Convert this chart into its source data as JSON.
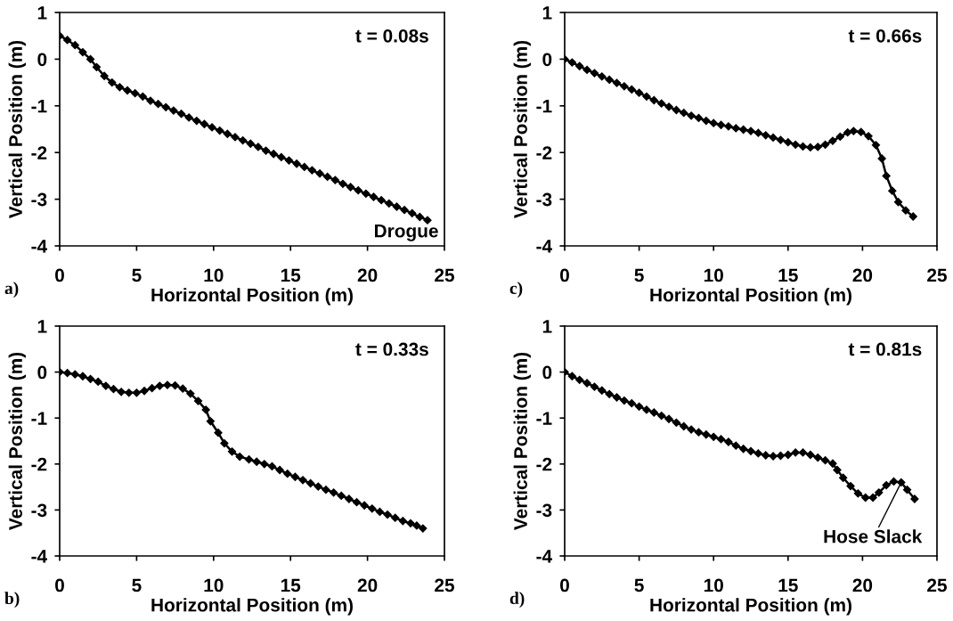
{
  "chart_data": [
    {
      "type": "line",
      "xlabel": "Horizontal Position (m)",
      "ylabel": "Vertical Position (m)",
      "xlim": [
        0,
        25
      ],
      "ylim": [
        -4,
        1
      ],
      "xticks": [
        0,
        5,
        10,
        15,
        20,
        25
      ],
      "yticks": [
        -4,
        -3,
        -2,
        -1,
        0,
        1
      ],
      "grid": false,
      "marker": "diamond",
      "line_style": "solid",
      "annotations": [
        "a)",
        "t = 0.08s",
        "Drogue"
      ],
      "series": [
        {
          "color": "#000000",
          "x": [
            0,
            0.5,
            1,
            1.5,
            2,
            2.4,
            2.9,
            3.4,
            3.9,
            4.4,
            4.9,
            5.4,
            5.9,
            6.4,
            6.9,
            7.4,
            7.9,
            8.4,
            8.9,
            9.4,
            9.9,
            10.4,
            10.9,
            11.4,
            11.9,
            12.4,
            12.9,
            13.4,
            13.9,
            14.4,
            14.9,
            15.4,
            15.9,
            16.4,
            16.9,
            17.4,
            17.9,
            18.4,
            18.9,
            19.4,
            19.9,
            20.4,
            20.9,
            21.4,
            21.9,
            22.4,
            22.9,
            23.4,
            23.9
          ],
          "values": [
            0.5,
            0.41,
            0.3,
            0.15,
            0.0,
            -0.17,
            -0.36,
            -0.5,
            -0.6,
            -0.67,
            -0.73,
            -0.8,
            -0.89,
            -0.96,
            -1.03,
            -1.1,
            -1.17,
            -1.25,
            -1.32,
            -1.39,
            -1.46,
            -1.53,
            -1.6,
            -1.67,
            -1.74,
            -1.81,
            -1.88,
            -1.96,
            -2.03,
            -2.1,
            -2.17,
            -2.24,
            -2.31,
            -2.38,
            -2.45,
            -2.52,
            -2.59,
            -2.67,
            -2.74,
            -2.81,
            -2.88,
            -2.95,
            -3.02,
            -3.09,
            -3.16,
            -3.23,
            -3.3,
            -3.38,
            -3.45
          ]
        }
      ]
    },
    {
      "type": "line",
      "xlabel": "Horizontal Position (m)",
      "ylabel": "Vertical Position (m)",
      "xlim": [
        0,
        25
      ],
      "ylim": [
        -4,
        1
      ],
      "xticks": [
        0,
        5,
        10,
        15,
        20,
        25
      ],
      "yticks": [
        -4,
        -3,
        -2,
        -1,
        0,
        1
      ],
      "grid": false,
      "marker": "diamond",
      "line_style": "solid",
      "annotations": [
        "c)",
        "t = 0.66s"
      ],
      "series": [
        {
          "color": "#000000",
          "x": [
            0,
            0.5,
            1,
            1.5,
            2,
            2.5,
            3,
            3.5,
            4,
            4.5,
            5,
            5.5,
            6,
            6.5,
            7,
            7.5,
            8,
            8.5,
            9,
            9.5,
            10,
            10.5,
            11,
            11.5,
            12,
            12.5,
            13,
            13.5,
            14,
            14.5,
            15,
            15.5,
            16,
            16.5,
            17,
            17.5,
            18,
            18.5,
            19,
            19.4,
            19.9,
            20.4,
            20.9,
            21.3,
            21.6,
            22,
            22.4,
            22.9,
            23.4
          ],
          "values": [
            0,
            -0.07,
            -0.15,
            -0.23,
            -0.3,
            -0.37,
            -0.44,
            -0.51,
            -0.58,
            -0.65,
            -0.72,
            -0.8,
            -0.88,
            -0.95,
            -1.02,
            -1.09,
            -1.15,
            -1.21,
            -1.26,
            -1.32,
            -1.37,
            -1.41,
            -1.44,
            -1.48,
            -1.51,
            -1.54,
            -1.58,
            -1.63,
            -1.68,
            -1.73,
            -1.78,
            -1.83,
            -1.87,
            -1.89,
            -1.88,
            -1.83,
            -1.75,
            -1.66,
            -1.57,
            -1.54,
            -1.56,
            -1.65,
            -1.84,
            -2.13,
            -2.5,
            -2.82,
            -3.06,
            -3.24,
            -3.37
          ]
        }
      ]
    },
    {
      "type": "line",
      "xlabel": "Horizontal Position (m)",
      "ylabel": "Vertical Position (m)",
      "xlim": [
        0,
        25
      ],
      "ylim": [
        -4,
        1
      ],
      "xticks": [
        0,
        5,
        10,
        15,
        20,
        25
      ],
      "yticks": [
        -4,
        -3,
        -2,
        -1,
        0,
        1
      ],
      "grid": false,
      "marker": "diamond",
      "line_style": "solid",
      "annotations": [
        "b)",
        "t = 0.33s"
      ],
      "series": [
        {
          "color": "#000000",
          "x": [
            0,
            0.5,
            1,
            1.5,
            2,
            2.5,
            3,
            3.5,
            4,
            4.5,
            5,
            5.5,
            6,
            6.5,
            7,
            7.5,
            8,
            8.5,
            9,
            9.5,
            9.8,
            10.3,
            10.7,
            11.2,
            11.7,
            12.3,
            12.8,
            13.3,
            13.8,
            14.3,
            14.8,
            15.3,
            15.8,
            16.3,
            16.8,
            17.3,
            17.8,
            18.3,
            18.8,
            19.3,
            19.8,
            20.3,
            20.8,
            21.3,
            21.8,
            22.3,
            22.8,
            23.2,
            23.6
          ],
          "values": [
            0,
            -0.02,
            -0.05,
            -0.09,
            -0.15,
            -0.21,
            -0.3,
            -0.37,
            -0.43,
            -0.45,
            -0.45,
            -0.41,
            -0.35,
            -0.3,
            -0.28,
            -0.29,
            -0.36,
            -0.47,
            -0.63,
            -0.82,
            -1.07,
            -1.32,
            -1.55,
            -1.73,
            -1.84,
            -1.9,
            -1.95,
            -2.0,
            -2.05,
            -2.13,
            -2.21,
            -2.28,
            -2.35,
            -2.42,
            -2.49,
            -2.56,
            -2.62,
            -2.69,
            -2.76,
            -2.83,
            -2.9,
            -2.97,
            -3.04,
            -3.1,
            -3.17,
            -3.24,
            -3.29,
            -3.34,
            -3.4
          ]
        }
      ]
    },
    {
      "type": "line",
      "xlabel": "Horizontal Position (m)",
      "ylabel": "Vertical Position (m)",
      "xlim": [
        0,
        25
      ],
      "ylim": [
        -4,
        1
      ],
      "xticks": [
        0,
        5,
        10,
        15,
        20,
        25
      ],
      "yticks": [
        -4,
        -3,
        -2,
        -1,
        0,
        1
      ],
      "grid": false,
      "marker": "diamond",
      "line_style": "solid",
      "annotations": [
        "d)",
        "t = 0.81s",
        {
          "text": "Hose Slack",
          "x": 22.6,
          "y": -2.4
        }
      ],
      "series": [
        {
          "color": "#000000",
          "x": [
            0,
            0.5,
            1,
            1.5,
            2,
            2.5,
            3,
            3.5,
            4,
            4.5,
            5,
            5.5,
            6,
            6.5,
            7,
            7.5,
            8,
            8.5,
            9,
            9.5,
            10,
            10.5,
            11,
            11.5,
            12,
            12.5,
            13,
            13.5,
            14,
            14.5,
            15,
            15.5,
            16,
            16.5,
            17,
            17.5,
            18,
            18.3,
            18.7,
            19.2,
            19.7,
            20.2,
            20.7,
            21.1,
            21.6,
            22.1,
            22.6,
            23,
            23.5
          ],
          "values": [
            0,
            -0.09,
            -0.17,
            -0.24,
            -0.32,
            -0.4,
            -0.48,
            -0.55,
            -0.62,
            -0.68,
            -0.75,
            -0.82,
            -0.88,
            -0.95,
            -1.02,
            -1.1,
            -1.18,
            -1.25,
            -1.31,
            -1.36,
            -1.41,
            -1.46,
            -1.52,
            -1.6,
            -1.67,
            -1.72,
            -1.77,
            -1.81,
            -1.83,
            -1.82,
            -1.8,
            -1.75,
            -1.75,
            -1.8,
            -1.86,
            -1.92,
            -1.99,
            -2.13,
            -2.3,
            -2.48,
            -2.64,
            -2.73,
            -2.73,
            -2.62,
            -2.46,
            -2.38,
            -2.4,
            -2.56,
            -2.76
          ]
        }
      ]
    }
  ]
}
